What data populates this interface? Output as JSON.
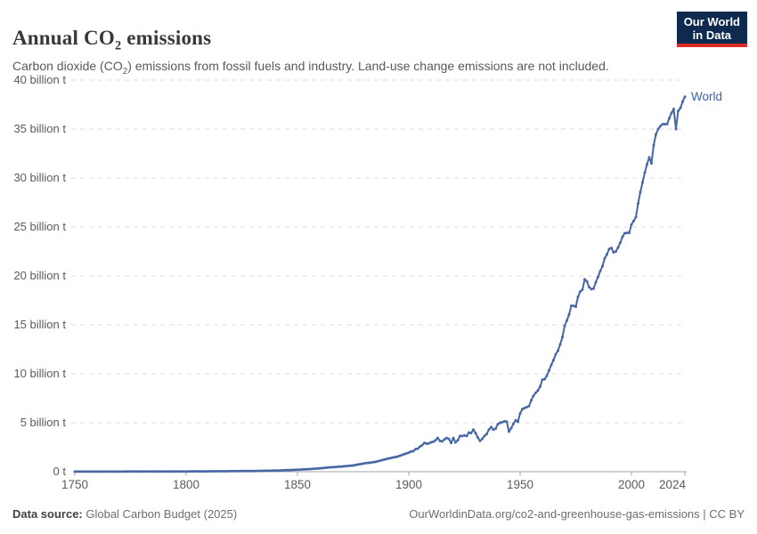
{
  "header": {
    "title": {
      "prefix": "Annual CO",
      "sub": "2",
      "suffix": " emissions"
    },
    "subtitle": {
      "prefix": "Carbon dioxide (CO",
      "sub": "2",
      "suffix": ") emissions from fossil fuels and industry. Land-use change emissions are not included."
    },
    "logo": {
      "line1": "Our World",
      "line2": "in Data",
      "bg_color": "#0E2A4F",
      "accent_color": "#DC2A27"
    }
  },
  "chart_data": {
    "type": "line",
    "title": "Annual CO2 emissions",
    "xlabel": "",
    "ylabel": "",
    "unit_suffix": "billion t",
    "x_range": [
      1750,
      2024
    ],
    "y_range": [
      0,
      40
    ],
    "grid": "horizontal-dashed",
    "grid_color": "#dcdcdc",
    "axis_color": "#a3a3a3",
    "tick_label_color": "#5b5b5b",
    "legend_position": "end-of-line",
    "x_ticks": [
      {
        "year": 1750,
        "label": "1750"
      },
      {
        "year": 1800,
        "label": "1800"
      },
      {
        "year": 1850,
        "label": "1850"
      },
      {
        "year": 1900,
        "label": "1900"
      },
      {
        "year": 1950,
        "label": "1950"
      },
      {
        "year": 2000,
        "label": "2000"
      },
      {
        "year": 2024,
        "label": "2024"
      }
    ],
    "y_ticks": [
      {
        "value": 0,
        "label": "0 t"
      },
      {
        "value": 5,
        "label": "5 billion t"
      },
      {
        "value": 10,
        "label": "10 billion t"
      },
      {
        "value": 15,
        "label": "15 billion t"
      },
      {
        "value": 20,
        "label": "20 billion t"
      },
      {
        "value": 25,
        "label": "25 billion t"
      },
      {
        "value": 30,
        "label": "30 billion t"
      },
      {
        "value": 35,
        "label": "35 billion t"
      },
      {
        "value": 40,
        "label": "40 billion t"
      }
    ],
    "series": [
      {
        "name": "World",
        "color": "#4766A3",
        "label_color": "#3A63AE",
        "points": [
          [
            1750,
            0.009
          ],
          [
            1760,
            0.011
          ],
          [
            1770,
            0.013
          ],
          [
            1780,
            0.016
          ],
          [
            1790,
            0.021
          ],
          [
            1800,
            0.03
          ],
          [
            1810,
            0.04
          ],
          [
            1820,
            0.052
          ],
          [
            1830,
            0.075
          ],
          [
            1840,
            0.11
          ],
          [
            1850,
            0.2
          ],
          [
            1855,
            0.26
          ],
          [
            1860,
            0.34
          ],
          [
            1865,
            0.45
          ],
          [
            1870,
            0.53
          ],
          [
            1875,
            0.64
          ],
          [
            1880,
            0.85
          ],
          [
            1885,
            1.0
          ],
          [
            1890,
            1.3
          ],
          [
            1895,
            1.55
          ],
          [
            1900,
            1.95
          ],
          [
            1901,
            2.05
          ],
          [
            1902,
            2.1
          ],
          [
            1903,
            2.3
          ],
          [
            1904,
            2.35
          ],
          [
            1905,
            2.55
          ],
          [
            1906,
            2.7
          ],
          [
            1907,
            2.95
          ],
          [
            1908,
            2.85
          ],
          [
            1909,
            2.9
          ],
          [
            1910,
            3.0
          ],
          [
            1911,
            3.05
          ],
          [
            1912,
            3.2
          ],
          [
            1913,
            3.45
          ],
          [
            1914,
            3.15
          ],
          [
            1915,
            3.1
          ],
          [
            1916,
            3.3
          ],
          [
            1917,
            3.45
          ],
          [
            1918,
            3.35
          ],
          [
            1919,
            2.95
          ],
          [
            1920,
            3.45
          ],
          [
            1921,
            3.0
          ],
          [
            1922,
            3.2
          ],
          [
            1923,
            3.65
          ],
          [
            1924,
            3.65
          ],
          [
            1925,
            3.7
          ],
          [
            1926,
            3.65
          ],
          [
            1927,
            4.0
          ],
          [
            1928,
            3.95
          ],
          [
            1929,
            4.3
          ],
          [
            1930,
            3.95
          ],
          [
            1931,
            3.5
          ],
          [
            1932,
            3.15
          ],
          [
            1933,
            3.35
          ],
          [
            1934,
            3.65
          ],
          [
            1935,
            3.85
          ],
          [
            1936,
            4.3
          ],
          [
            1937,
            4.55
          ],
          [
            1938,
            4.3
          ],
          [
            1939,
            4.4
          ],
          [
            1940,
            4.85
          ],
          [
            1941,
            5.0
          ],
          [
            1942,
            5.05
          ],
          [
            1943,
            5.15
          ],
          [
            1944,
            5.1
          ],
          [
            1945,
            4.1
          ],
          [
            1946,
            4.45
          ],
          [
            1947,
            4.9
          ],
          [
            1948,
            5.25
          ],
          [
            1949,
            5.1
          ],
          [
            1950,
            5.95
          ],
          [
            1951,
            6.4
          ],
          [
            1952,
            6.5
          ],
          [
            1953,
            6.6
          ],
          [
            1954,
            6.7
          ],
          [
            1955,
            7.3
          ],
          [
            1956,
            7.75
          ],
          [
            1957,
            8.05
          ],
          [
            1958,
            8.3
          ],
          [
            1959,
            8.7
          ],
          [
            1960,
            9.4
          ],
          [
            1961,
            9.45
          ],
          [
            1962,
            9.8
          ],
          [
            1963,
            10.35
          ],
          [
            1964,
            10.9
          ],
          [
            1965,
            11.4
          ],
          [
            1966,
            12.0
          ],
          [
            1967,
            12.35
          ],
          [
            1968,
            13.0
          ],
          [
            1969,
            13.75
          ],
          [
            1970,
            14.9
          ],
          [
            1971,
            15.45
          ],
          [
            1972,
            16.05
          ],
          [
            1973,
            16.95
          ],
          [
            1974,
            16.95
          ],
          [
            1975,
            16.85
          ],
          [
            1976,
            17.85
          ],
          [
            1977,
            18.4
          ],
          [
            1978,
            18.6
          ],
          [
            1979,
            19.65
          ],
          [
            1980,
            19.45
          ],
          [
            1981,
            18.85
          ],
          [
            1982,
            18.65
          ],
          [
            1983,
            18.7
          ],
          [
            1984,
            19.35
          ],
          [
            1985,
            19.9
          ],
          [
            1986,
            20.5
          ],
          [
            1987,
            21.0
          ],
          [
            1988,
            21.8
          ],
          [
            1989,
            22.2
          ],
          [
            1990,
            22.75
          ],
          [
            1991,
            22.85
          ],
          [
            1992,
            22.4
          ],
          [
            1993,
            22.5
          ],
          [
            1994,
            22.9
          ],
          [
            1995,
            23.4
          ],
          [
            1996,
            24.0
          ],
          [
            1997,
            24.35
          ],
          [
            1998,
            24.4
          ],
          [
            1999,
            24.4
          ],
          [
            2000,
            25.25
          ],
          [
            2001,
            25.6
          ],
          [
            2002,
            26.0
          ],
          [
            2003,
            27.4
          ],
          [
            2004,
            28.55
          ],
          [
            2005,
            29.55
          ],
          [
            2006,
            30.55
          ],
          [
            2007,
            31.4
          ],
          [
            2008,
            32.1
          ],
          [
            2009,
            31.5
          ],
          [
            2010,
            33.35
          ],
          [
            2011,
            34.45
          ],
          [
            2012,
            35.0
          ],
          [
            2013,
            35.3
          ],
          [
            2014,
            35.5
          ],
          [
            2015,
            35.5
          ],
          [
            2016,
            35.5
          ],
          [
            2017,
            36.1
          ],
          [
            2018,
            36.65
          ],
          [
            2019,
            37.05
          ],
          [
            2020,
            35.0
          ],
          [
            2021,
            36.85
          ],
          [
            2022,
            37.15
          ],
          [
            2023,
            37.8
          ],
          [
            2024,
            38.3
          ]
        ]
      }
    ]
  },
  "footer": {
    "source_label": "Data source:",
    "source_value": " Global Carbon Budget (2025)",
    "link": "OurWorldinData.org/co2-and-greenhouse-gas-emissions | CC BY"
  }
}
